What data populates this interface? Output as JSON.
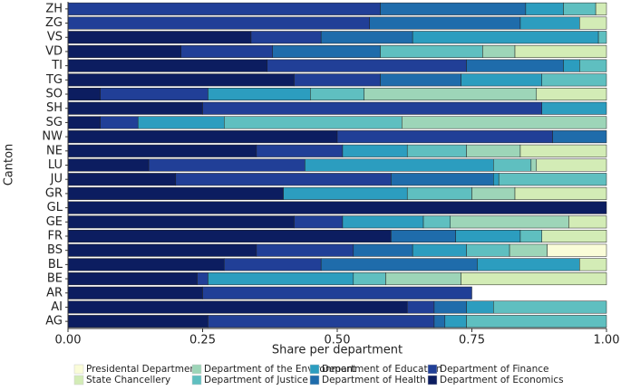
{
  "chart_data": {
    "type": "stacked-barh",
    "xlabel": "Share per department",
    "ylabel": "Canton",
    "categories": [
      "ZH",
      "ZG",
      "VS",
      "VD",
      "TI",
      "TG",
      "SO",
      "SH",
      "SG",
      "NW",
      "NE",
      "LU",
      "JU",
      "GR",
      "GL",
      "GE",
      "FR",
      "BS",
      "BL",
      "BE",
      "AR",
      "AI",
      "AG"
    ],
    "xlim": [
      0,
      1
    ],
    "xticks": [
      {
        "value": 0,
        "label": "0.00"
      },
      {
        "value": 0.25,
        "label": "0.25"
      },
      {
        "value": 0.5,
        "label": "0.50"
      },
      {
        "value": 0.75,
        "label": "0.75"
      },
      {
        "value": 1,
        "label": "1.00"
      }
    ],
    "series": [
      {
        "name": "Department of Economics",
        "color": "#0c1d60",
        "values": [
          0,
          0,
          0.34,
          0.21,
          0.37,
          0.42,
          0.06,
          0.25,
          0.06,
          0.5,
          0.35,
          0.15,
          0.2,
          0.4,
          1,
          0.42,
          0.6,
          0.35,
          0.29,
          0.24,
          0.25,
          0.63,
          0.26
        ]
      },
      {
        "name": "Department of Finance",
        "color": "#213f97",
        "values": [
          0.58,
          0.56,
          0.13,
          0.17,
          0.37,
          0.16,
          0.2,
          0.63,
          0.07,
          0.4,
          0.16,
          0.29,
          0.4,
          0,
          0,
          0.09,
          0,
          0.18,
          0.18,
          0.02,
          0.5,
          0.05,
          0.42
        ]
      },
      {
        "name": "Department of Health",
        "color": "#1f6cab",
        "values": [
          0.27,
          0.28,
          0.17,
          0.2,
          0.18,
          0.15,
          0,
          0,
          0,
          0.1,
          0,
          0,
          0.19,
          0,
          0,
          0,
          0.12,
          0.11,
          0.29,
          0,
          0,
          0.06,
          0.02
        ]
      },
      {
        "name": "Department of Education",
        "color": "#2c9dbf",
        "values": [
          0.07,
          0.11,
          0.345,
          0,
          0.03,
          0.15,
          0.19,
          0.12,
          0.16,
          0,
          0.12,
          0.35,
          0.01,
          0.23,
          0,
          0.15,
          0.12,
          0.1,
          0.19,
          0.27,
          0,
          0.05,
          0.04
        ]
      },
      {
        "name": "Department of Justice",
        "color": "#5fbfc0",
        "values": [
          0.06,
          0,
          0.015,
          0.19,
          0.05,
          0.12,
          0.1,
          0,
          0.33,
          0,
          0.11,
          0.07,
          0.2,
          0.12,
          0,
          0.05,
          0.04,
          0.08,
          0,
          0.06,
          0,
          0.21,
          0.26
        ]
      },
      {
        "name": "Department of the Environment",
        "color": "#9dd5b8",
        "values": [
          0,
          0,
          0,
          0.06,
          0,
          0,
          0.32,
          0,
          0.38,
          0,
          0.1,
          0.01,
          0,
          0.08,
          0,
          0.22,
          0,
          0.07,
          0,
          0.14,
          0,
          0,
          0
        ]
      },
      {
        "name": "State Chancellery",
        "color": "#d3ecb6",
        "values": [
          0.02,
          0.05,
          0,
          0.17,
          0,
          0,
          0.13,
          0,
          0,
          0,
          0.16,
          0.13,
          0,
          0.17,
          0,
          0.07,
          0.12,
          0,
          0.05,
          0.27,
          0,
          0,
          0
        ]
      },
      {
        "name": "Presidental Department",
        "color": "#fafcd8",
        "values": [
          0,
          0,
          0,
          0,
          0,
          0,
          0,
          0,
          0,
          0,
          0,
          0,
          0,
          0,
          0,
          0,
          0,
          0.11,
          0,
          0,
          0,
          0,
          0
        ]
      }
    ]
  }
}
